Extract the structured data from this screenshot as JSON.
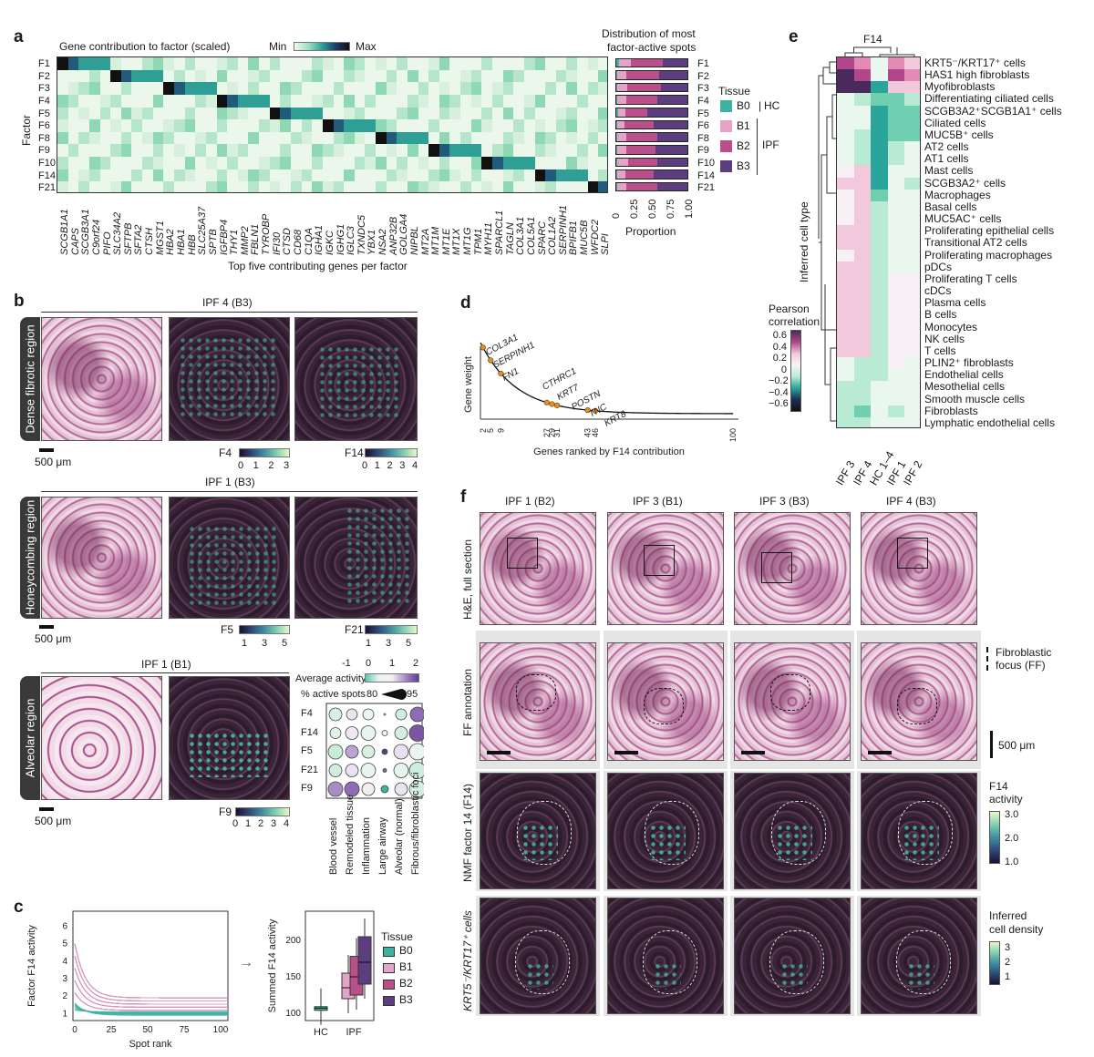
{
  "panel_letters": {
    "a": "a",
    "b": "b",
    "c": "c",
    "d": "d",
    "e": "e",
    "f": "f"
  },
  "panel_a": {
    "title": "Gene contribution to factor (scaled)",
    "min_label": "Min",
    "max_label": "Max",
    "dist_title_1": "Distribution of most",
    "dist_title_2": "factor-active spots",
    "ylabel": "Factor",
    "xlabel": "Top five contributing genes per factor",
    "proportion_label": "Proportion",
    "factors": [
      "F1",
      "F2",
      "F3",
      "F4",
      "F5",
      "F6",
      "F8",
      "F9",
      "F10",
      "F14",
      "F21"
    ],
    "genes": [
      "SCGB1A1",
      "CAPS",
      "SCGB3A1",
      "C9orf24",
      "PIFO",
      "SLC34A2",
      "SFTPB",
      "SFTA2",
      "CTSH",
      "MGST1",
      "HBA2",
      "HBA1",
      "HBB",
      "SLC25A37",
      "SPTB",
      "IGFBP4",
      "THY1",
      "MMP2",
      "FBLN1",
      "TYROBP",
      "IFI30",
      "CTSD",
      "CD68",
      "C1QA",
      "IGHA1",
      "IGKC",
      "IGHG1",
      "IGLC3",
      "TXNDC5",
      "YBX1",
      "NSA2",
      "ANP32B",
      "GOLGA4",
      "NIPBL",
      "MT2A",
      "MT1M",
      "MT1E",
      "MT1X",
      "MT1G",
      "TPM1",
      "MYH11",
      "SPARCL1",
      "TAGLN",
      "COL3A1",
      "COL5A1",
      "SPARC",
      "COL1A2",
      "SERPINH1",
      "BPIFB1",
      "MUC5B",
      "WFDC2",
      "SLPI"
    ],
    "prop_ticks": [
      "0",
      "0.25",
      "0.50",
      "0.75",
      "1.00"
    ],
    "tissue_title": "Tissue",
    "tissue_items": [
      "B0",
      "B1",
      "B2",
      "B3"
    ],
    "tissue_hc": "HC",
    "tissue_ipf": "IPF",
    "tissue_colors": [
      "#3bb3a0",
      "#e3a4c8",
      "#b9508a",
      "#5b3d80"
    ],
    "proportions": [
      [
        0.05,
        0.16,
        0.44,
        0.35
      ],
      [
        0.03,
        0.12,
        0.45,
        0.4
      ],
      [
        0.03,
        0.13,
        0.46,
        0.38
      ],
      [
        0.03,
        0.12,
        0.43,
        0.42
      ],
      [
        0.04,
        0.1,
        0.3,
        0.56
      ],
      [
        0.03,
        0.1,
        0.4,
        0.47
      ],
      [
        0.03,
        0.12,
        0.42,
        0.43
      ],
      [
        0.03,
        0.12,
        0.4,
        0.45
      ],
      [
        0.03,
        0.14,
        0.4,
        0.43
      ],
      [
        0.03,
        0.11,
        0.38,
        0.48
      ],
      [
        0.03,
        0.12,
        0.43,
        0.42
      ]
    ]
  },
  "panel_b": {
    "group1_title": "IPF 4 (B3)",
    "group2_title": "IPF 1 (B3)",
    "group3_title": "IPF 1 (B1)",
    "region1": "Dense fibrotic region",
    "region2": "Honeycombing region",
    "region3": "Alveolar region",
    "scale": "500 μm",
    "f4_label": "F4",
    "f4_ticks": [
      "0",
      "1",
      "2",
      "3"
    ],
    "f14_label": "F14",
    "f14_ticks": [
      "0",
      "1",
      "2",
      "3",
      "4"
    ],
    "f5_label": "F5",
    "f5_ticks": [
      "1",
      "3",
      "5"
    ],
    "f21_label": "F21",
    "f21_ticks": [
      "1",
      "3",
      "5"
    ],
    "f9_label": "F9",
    "f9_ticks": [
      "0",
      "1",
      "2",
      "3",
      "4"
    ],
    "avg_activity": "Average activity",
    "avg_ticks": [
      "-1",
      "0",
      "1",
      "2"
    ],
    "pct_active": "% active spots",
    "pct_min": "80",
    "pct_max": "95",
    "dot_rows": [
      "F4",
      "F14",
      "F5",
      "F21",
      "F9"
    ],
    "dot_cols": [
      "Blood vessel",
      "Remodeled tissue",
      "Inflammation",
      "Large airway",
      "Alveolar (normal)",
      "Fibrous/fibroblastic foci"
    ]
  },
  "panel_c": {
    "ylabel": "Factor F14 activity",
    "xlabel": "Spot rank",
    "yticks": [
      "1",
      "2",
      "3",
      "4",
      "5",
      "6"
    ],
    "xticks": [
      "0",
      "25",
      "50",
      "75",
      "100"
    ],
    "box_ylabel": "Summed F14 activity",
    "box_yticks": [
      "100",
      "150",
      "200"
    ],
    "box_x": [
      "HC",
      "IPF"
    ],
    "tissue_title": "Tissue",
    "tissue_items": [
      "B0",
      "B1",
      "B2",
      "B3"
    ],
    "arrow": "→"
  },
  "panel_d": {
    "ylabel": "Gene weight",
    "xlabel": "Genes ranked by F14 contribution",
    "genes": [
      "COL3A1",
      "SERPINH1",
      "FN1",
      "CTHRC1",
      "KRT7",
      "POSTN",
      "TNC",
      "KRT8"
    ],
    "xticks": [
      "2",
      "5",
      "9",
      "27",
      "29",
      "31",
      "43",
      "46",
      "100"
    ]
  },
  "panel_e": {
    "title": "F14",
    "ylabel": "Inferred cell type",
    "legend_title_1": "Pearson",
    "legend_title_2": "correlation",
    "legend_ticks": [
      "0.6",
      "0.4",
      "0.2",
      "0",
      "−0.2",
      "−0.4",
      "−0.6"
    ],
    "columns": [
      "IPF 3",
      "IPF 4",
      "HC 1–4",
      "IPF 1",
      "IPF 2"
    ],
    "cell_types": [
      "KRT5⁻/KRT17⁺ cells",
      "HAS1 high fibroblasts",
      "Myofibroblasts",
      "Differentiating ciliated cells",
      "SCGB3A2⁺SCGB1A1⁺ cells",
      "Ciliated cells",
      "MUC5B⁺ cells",
      "AT2 cells",
      "AT1 cells",
      "Mast cells",
      "SCGB3A2⁺ cells",
      "Macrophages",
      "Basal cells",
      "MUC5AC⁺ cells",
      "Proliferating epithelial cells",
      "Transitional AT2 cells",
      "Proliferating macrophages",
      "pDCs",
      "Proliferating T cells",
      "cDCs",
      "Plasma cells",
      "B cells",
      "Monocytes",
      "NK cells",
      "T cells",
      "PLIN2⁺ fibroblasts",
      "Endothelial cells",
      "Mesothelial cells",
      "Smooth muscle cells",
      "Fibroblasts",
      "Lymphatic endothelial cells"
    ]
  },
  "panel_f": {
    "columns": [
      "IPF 1 (B2)",
      "IPF 3 (B1)",
      "IPF 3 (B3)",
      "IPF 4 (B3)"
    ],
    "row1": "H&E, full section",
    "row2": "FF annotation",
    "row3": "NMF factor 14 (F14)",
    "row4": "KRT5⁻/KRT17⁺ cells",
    "ff_legend_1": "Fibroblastic",
    "ff_legend_2": "focus (FF)",
    "scale": "500 μm",
    "f14_title_1": "F14",
    "f14_title_2": "activity",
    "f14_ticks": [
      "3.0",
      "2.0",
      "1.0"
    ],
    "dens_title_1": "Inferred",
    "dens_title_2": "cell density",
    "dens_ticks": [
      "3",
      "2",
      "1"
    ]
  }
}
